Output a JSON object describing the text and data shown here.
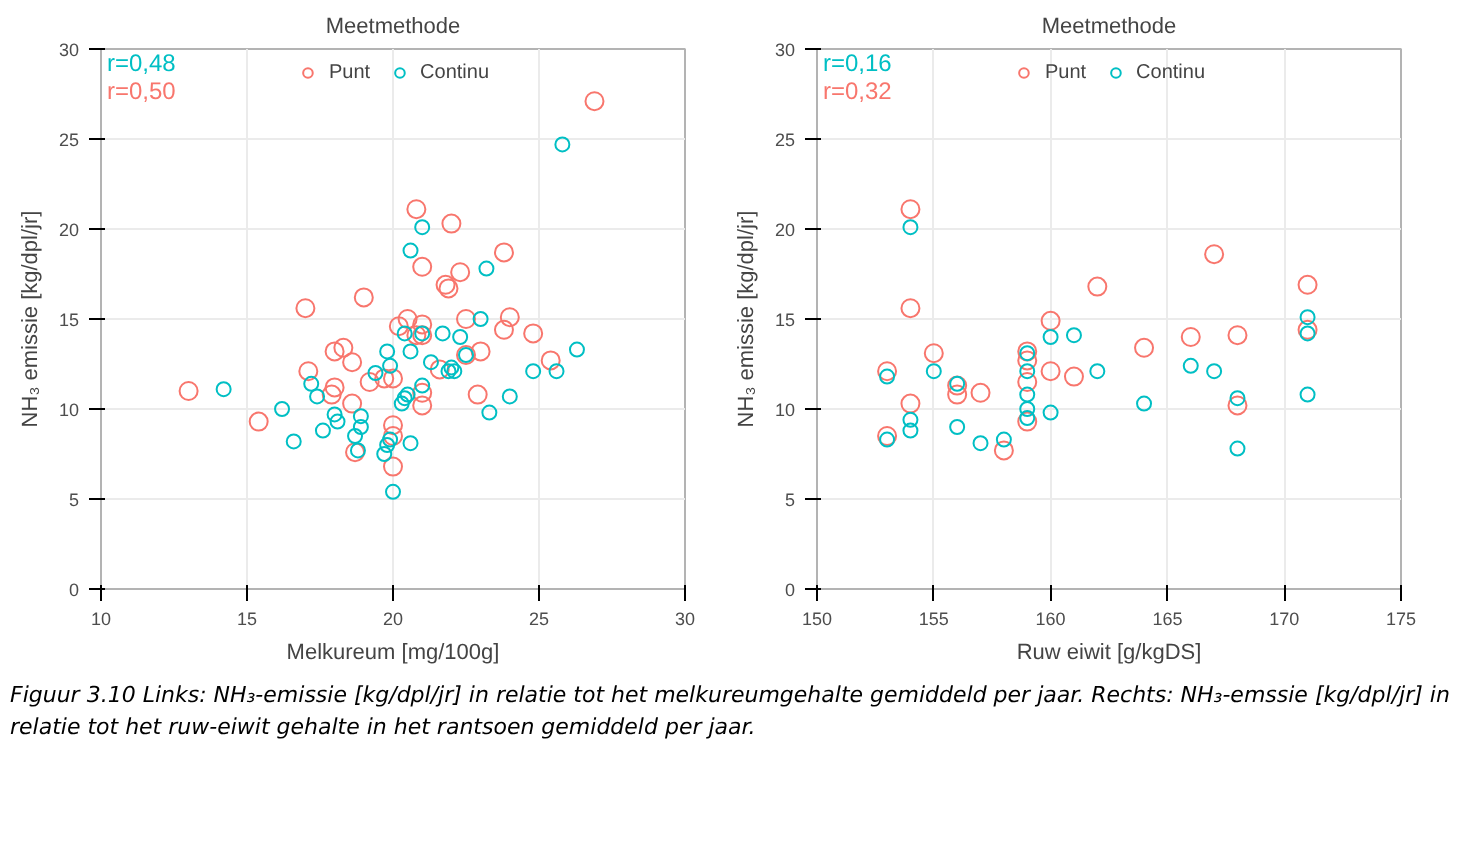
{
  "chart_data": [
    {
      "type": "scatter",
      "xlabel": "Melkureum [mg/100g]",
      "ylabel": "NH₃ emissie [kg/dpl/jr]",
      "legend_title": "Meetmethode",
      "legend": "top",
      "grid": true,
      "marker": "circle",
      "xlim": [
        10,
        30
      ],
      "xticks": [
        10,
        15,
        20,
        25,
        30
      ],
      "ylim": [
        0,
        30
      ],
      "yticks": [
        0,
        5,
        10,
        15,
        20,
        25,
        30
      ],
      "annotations": [
        "r=0,48",
        "r=0,50"
      ],
      "series": [
        {
          "name": "Punt",
          "color": "#f8766d",
          "x": [
            13.0,
            15.4,
            17.0,
            17.1,
            18.0,
            18.3,
            18.6,
            17.9,
            18.0,
            18.6,
            18.7,
            19.0,
            19.2,
            19.7,
            20.0,
            20.0,
            20.0,
            20.0,
            20.2,
            20.5,
            20.8,
            20.8,
            21.0,
            21.0,
            21.0,
            21.0,
            21.0,
            21.6,
            21.8,
            21.9,
            22.0,
            22.3,
            22.5,
            22.5,
            22.9,
            23.0,
            23.8,
            23.8,
            24.0,
            24.8,
            25.4,
            26.9
          ],
          "values": [
            11.0,
            9.3,
            15.6,
            12.1,
            13.2,
            13.4,
            12.6,
            10.8,
            11.2,
            10.3,
            7.6,
            16.2,
            11.5,
            11.7,
            11.7,
            9.1,
            8.5,
            6.8,
            14.6,
            15.0,
            21.1,
            14.1,
            17.9,
            14.7,
            14.1,
            10.9,
            10.2,
            12.2,
            16.9,
            16.7,
            20.3,
            17.6,
            15.0,
            13.0,
            10.8,
            13.2,
            18.7,
            14.4,
            15.1,
            14.2,
            12.7,
            27.1
          ]
        },
        {
          "name": "Continu",
          "color": "#00bfc4",
          "x": [
            14.2,
            16.2,
            16.6,
            17.2,
            17.4,
            17.6,
            18.0,
            18.1,
            18.7,
            18.9,
            18.9,
            18.8,
            19.4,
            19.8,
            19.9,
            19.7,
            19.8,
            19.9,
            20.0,
            20.3,
            20.4,
            20.5,
            20.6,
            20.4,
            20.6,
            20.6,
            21.0,
            21.0,
            21.0,
            21.3,
            21.7,
            21.9,
            22.0,
            22.1,
            22.3,
            22.5,
            23.0,
            23.2,
            23.3,
            24.0,
            24.8,
            25.6,
            25.8,
            26.3
          ],
          "values": [
            11.1,
            10.0,
            8.2,
            11.4,
            10.7,
            8.8,
            9.7,
            9.3,
            8.5,
            9.6,
            9.0,
            7.7,
            12.0,
            13.2,
            12.4,
            7.5,
            8.0,
            8.3,
            5.4,
            10.3,
            10.6,
            10.8,
            13.2,
            14.2,
            8.1,
            18.8,
            20.1,
            14.2,
            11.3,
            12.6,
            14.2,
            12.1,
            12.3,
            12.1,
            14.0,
            13.0,
            15.0,
            17.8,
            9.8,
            10.7,
            12.1,
            12.1,
            24.7,
            13.3
          ]
        }
      ]
    },
    {
      "type": "scatter",
      "xlabel": "Ruw eiwit [g/kgDS]",
      "ylabel": "NH₃ emissie [kg/dpl/jr]",
      "legend_title": "Meetmethode",
      "legend": "top",
      "grid": true,
      "marker": "circle",
      "xlim": [
        150,
        175
      ],
      "xticks": [
        150,
        155,
        160,
        165,
        170,
        175
      ],
      "ylim": [
        0,
        30
      ],
      "yticks": [
        0,
        5,
        10,
        15,
        20,
        25,
        30
      ],
      "annotations": [
        "r=0,16",
        "r=0,32",
        "Figuur 3.10 Links: NH₃-emissie [kg/dpl/jr] in relatie tot het melkureumgehalte gemiddeld per jaar. Rechts: NH₃-emssie [kg/dpl/jr] in relatie tot het ruw-eiwit gehalte in het rantsoen gemiddeld per jaar."
      ],
      "series": [
        {
          "name": "Punt",
          "color": "#f8766d",
          "x": [
            153,
            153,
            154,
            154,
            154,
            155,
            156,
            156,
            157,
            158,
            159,
            159,
            159,
            159,
            160,
            160,
            161,
            162,
            164,
            166,
            167,
            168,
            168,
            171,
            171
          ],
          "values": [
            12.1,
            8.5,
            21.1,
            15.6,
            10.3,
            13.1,
            10.8,
            11.3,
            10.9,
            7.7,
            13.2,
            12.7,
            11.5,
            9.3,
            14.9,
            12.1,
            11.8,
            16.8,
            13.4,
            14.0,
            18.6,
            14.1,
            10.2,
            16.9,
            14.4
          ]
        },
        {
          "name": "Continu",
          "color": "#00bfc4",
          "x": [
            153,
            153,
            154,
            154,
            154,
            155,
            156,
            156,
            157,
            158,
            159,
            159,
            159,
            159,
            159,
            160,
            160,
            161,
            162,
            164,
            166,
            167,
            168,
            168,
            171,
            171,
            171
          ],
          "values": [
            11.8,
            8.3,
            20.1,
            9.4,
            8.8,
            12.1,
            11.4,
            9.0,
            8.1,
            8.3,
            13.1,
            12.1,
            10.8,
            10.0,
            9.5,
            14.0,
            9.8,
            14.1,
            12.1,
            10.3,
            12.4,
            12.1,
            10.6,
            7.8,
            15.1,
            14.2,
            10.8
          ]
        }
      ]
    }
  ]
}
